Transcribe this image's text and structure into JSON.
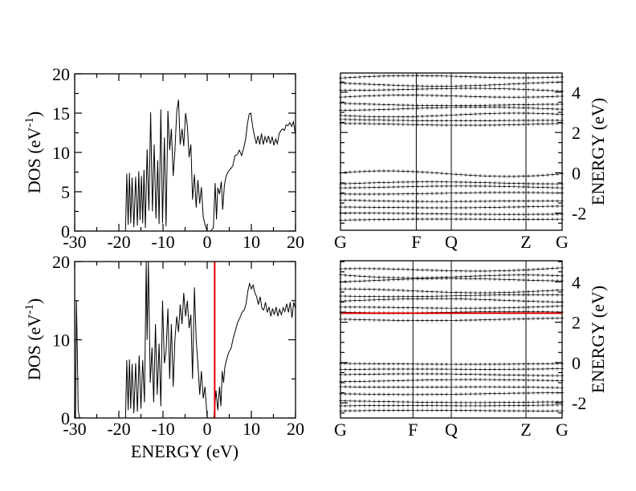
{
  "chart_data": [
    {
      "id": "dos_top",
      "type": "line",
      "xlabel": "ENERGY (eV)",
      "show_xlabel": false,
      "ylabel_main": "DOS (eV",
      "ylabel_sup": "-1",
      "ylabel_close": ")",
      "xlim": [
        -30,
        20
      ],
      "ylim": [
        0,
        20
      ],
      "xticks": [
        -30,
        -20,
        -10,
        0,
        10,
        20
      ],
      "xtick_labels": [
        "-30",
        "-20",
        "-10",
        "0",
        "10",
        "20"
      ],
      "yticks": [
        0,
        5,
        10,
        15,
        20
      ],
      "ytick_labels": [
        "0",
        "5",
        "10",
        "15",
        "20"
      ],
      "fermi_line": null,
      "series": [
        {
          "name": "DOS",
          "color": "#000000",
          "points": [
            [
              -18.5,
              0
            ],
            [
              -18.2,
              7.3
            ],
            [
              -17.9,
              0.8
            ],
            [
              -17.6,
              7.4
            ],
            [
              -17.3,
              1.0
            ],
            [
              -17.0,
              6.8
            ],
            [
              -16.6,
              0.5
            ],
            [
              -16.2,
              6.9
            ],
            [
              -15.8,
              0.7
            ],
            [
              -15.5,
              7.6
            ],
            [
              -15.2,
              1.4
            ],
            [
              -14.9,
              7.0
            ],
            [
              -14.6,
              1.0
            ],
            [
              -14.3,
              7.8
            ],
            [
              -14.0,
              0.4
            ],
            [
              -13.6,
              10.4
            ],
            [
              -13.2,
              2.6
            ],
            [
              -12.8,
              15.1
            ],
            [
              -12.4,
              2.5
            ],
            [
              -12.0,
              11.0
            ],
            [
              -11.6,
              1.6
            ],
            [
              -11.2,
              9.0
            ],
            [
              -10.9,
              0.9
            ],
            [
              -10.5,
              15.5
            ],
            [
              -10.1,
              1.0
            ],
            [
              -9.7,
              11.9
            ],
            [
              -9.3,
              0.6
            ],
            [
              -8.9,
              15.3
            ],
            [
              -8.5,
              10.3
            ],
            [
              -8.1,
              13.0
            ],
            [
              -7.7,
              7.0
            ],
            [
              -7.3,
              10.2
            ],
            [
              -6.9,
              15.2
            ],
            [
              -6.5,
              16.7
            ],
            [
              -6.1,
              11.0
            ],
            [
              -5.7,
              13.0
            ],
            [
              -5.3,
              10.8
            ],
            [
              -4.9,
              15.0
            ],
            [
              -4.5,
              13.4
            ],
            [
              -4.1,
              9.4
            ],
            [
              -3.7,
              11.0
            ],
            [
              -3.3,
              4.0
            ],
            [
              -2.9,
              7.2
            ],
            [
              -2.5,
              3.0
            ],
            [
              -2.1,
              6.5
            ],
            [
              -1.7,
              3.5
            ],
            [
              -1.3,
              5.6
            ],
            [
              -0.9,
              1.8
            ],
            [
              -0.5,
              0.8
            ],
            [
              0.0,
              0.0
            ],
            [
              0.8,
              0.0
            ],
            [
              1.4,
              0.4
            ],
            [
              1.8,
              6.1
            ],
            [
              2.1,
              1.5
            ],
            [
              2.4,
              5.5
            ],
            [
              2.8,
              4.7
            ],
            [
              3.2,
              6.3
            ],
            [
              3.5,
              2.7
            ],
            [
              3.9,
              5.8
            ],
            [
              4.3,
              7.0
            ],
            [
              4.8,
              7.6
            ],
            [
              5.3,
              7.9
            ],
            [
              5.8,
              8.3
            ],
            [
              6.3,
              9.6
            ],
            [
              6.8,
              9.7
            ],
            [
              7.3,
              10.3
            ],
            [
              7.8,
              9.6
            ],
            [
              8.3,
              10.6
            ],
            [
              8.7,
              11.7
            ],
            [
              9.1,
              13.6
            ],
            [
              9.5,
              14.9
            ],
            [
              9.9,
              15.0
            ],
            [
              10.3,
              13.3
            ],
            [
              10.7,
              12.1
            ],
            [
              11.1,
              11.1
            ],
            [
              11.5,
              12.1
            ],
            [
              11.9,
              11.0
            ],
            [
              12.3,
              12.4
            ],
            [
              12.7,
              11.0
            ],
            [
              13.1,
              12.0
            ],
            [
              13.5,
              11.3
            ],
            [
              13.9,
              12.1
            ],
            [
              14.3,
              11.1
            ],
            [
              14.7,
              12.0
            ],
            [
              15.1,
              10.9
            ],
            [
              15.5,
              11.7
            ],
            [
              15.9,
              11.1
            ],
            [
              16.3,
              12.4
            ],
            [
              16.7,
              12.8
            ],
            [
              17.1,
              13.0
            ],
            [
              17.5,
              12.8
            ],
            [
              17.9,
              13.5
            ],
            [
              18.3,
              13.4
            ],
            [
              18.7,
              13.8
            ],
            [
              19.1,
              13.3
            ],
            [
              19.5,
              13.9
            ],
            [
              20.0,
              12.3
            ]
          ]
        }
      ]
    },
    {
      "id": "dos_bottom",
      "type": "line",
      "xlabel": "ENERGY (eV)",
      "show_xlabel": true,
      "ylabel_main": "DOS (eV",
      "ylabel_sup": "-1",
      "ylabel_close": ")",
      "xlim": [
        -30,
        20
      ],
      "ylim": [
        0,
        20
      ],
      "xticks": [
        -30,
        -20,
        -10,
        0,
        10,
        20
      ],
      "xtick_labels": [
        "-30",
        "-20",
        "-10",
        "0",
        "10",
        "20"
      ],
      "yticks": [
        0,
        10,
        20
      ],
      "ytick_labels": [
        "0",
        "10",
        "20"
      ],
      "fermi_line": 1.7,
      "fermi_color": "#e00000",
      "series": [
        {
          "name": "DOS",
          "color": "#000000",
          "points": [
            [
              -29.8,
              0
            ],
            [
              -29.6,
              15.0
            ],
            [
              -29.4,
              8.5
            ],
            [
              -29.2,
              1.0
            ],
            [
              -28.9,
              0.0
            ],
            [
              -18.5,
              0
            ],
            [
              -18.2,
              7.4
            ],
            [
              -17.9,
              1.0
            ],
            [
              -17.6,
              7.5
            ],
            [
              -17.3,
              1.2
            ],
            [
              -17.0,
              6.9
            ],
            [
              -16.6,
              0.6
            ],
            [
              -16.2,
              7.0
            ],
            [
              -15.8,
              0.8
            ],
            [
              -15.4,
              8.0
            ],
            [
              -15.0,
              1.2
            ],
            [
              -14.6,
              7.4
            ],
            [
              -14.2,
              2.0
            ],
            [
              -13.8,
              20.0
            ],
            [
              -13.6,
              10.0
            ],
            [
              -13.3,
              20.0
            ],
            [
              -12.9,
              4.5
            ],
            [
              -12.5,
              9.0
            ],
            [
              -12.1,
              2.0
            ],
            [
              -11.7,
              12.0
            ],
            [
              -11.3,
              3.0
            ],
            [
              -10.9,
              9.5
            ],
            [
              -10.5,
              1.5
            ],
            [
              -10.1,
              15.0
            ],
            [
              -9.7,
              7.0
            ],
            [
              -9.3,
              8.5
            ],
            [
              -8.9,
              14.0
            ],
            [
              -8.5,
              5.0
            ],
            [
              -8.1,
              12.0
            ],
            [
              -7.7,
              4.0
            ],
            [
              -7.3,
              10.0
            ],
            [
              -6.9,
              13.0
            ],
            [
              -6.5,
              11.0
            ],
            [
              -6.1,
              14.5
            ],
            [
              -5.7,
              12.0
            ],
            [
              -5.3,
              16.0
            ],
            [
              -4.9,
              13.0
            ],
            [
              -4.5,
              15.0
            ],
            [
              -4.1,
              11.5
            ],
            [
              -3.7,
              13.2
            ],
            [
              -3.3,
              5.0
            ],
            [
              -2.9,
              16.7
            ],
            [
              -2.5,
              10.0
            ],
            [
              -2.1,
              7.0
            ],
            [
              -1.7,
              3.0
            ],
            [
              -1.3,
              6.0
            ],
            [
              -0.9,
              2.5
            ],
            [
              -0.5,
              4.0
            ],
            [
              0.0,
              0.0
            ],
            [
              1.5,
              0.0
            ],
            [
              2.0,
              3.5
            ],
            [
              2.4,
              1.0
            ],
            [
              2.8,
              4.0
            ],
            [
              3.1,
              1.5
            ],
            [
              3.4,
              6.0
            ],
            [
              3.7,
              4.5
            ],
            [
              4.0,
              6.5
            ],
            [
              4.4,
              7.5
            ],
            [
              4.9,
              8.4
            ],
            [
              5.4,
              8.9
            ],
            [
              5.9,
              10.2
            ],
            [
              6.4,
              11.2
            ],
            [
              6.9,
              12.2
            ],
            [
              7.4,
              12.8
            ],
            [
              7.9,
              13.5
            ],
            [
              8.4,
              13.8
            ],
            [
              8.8,
              14.6
            ],
            [
              9.2,
              16.2
            ],
            [
              9.6,
              17.2
            ],
            [
              10.0,
              16.5
            ],
            [
              10.4,
              17.0
            ],
            [
              10.8,
              16.0
            ],
            [
              11.2,
              15.5
            ],
            [
              11.6,
              14.5
            ],
            [
              12.0,
              15.5
            ],
            [
              12.4,
              14.0
            ],
            [
              12.8,
              13.8
            ],
            [
              13.2,
              14.8
            ],
            [
              13.6,
              13.5
            ],
            [
              14.0,
              14.2
            ],
            [
              14.4,
              13.0
            ],
            [
              14.8,
              14.0
            ],
            [
              15.2,
              13.2
            ],
            [
              15.6,
              14.2
            ],
            [
              16.0,
              13.0
            ],
            [
              16.4,
              13.9
            ],
            [
              16.8,
              13.2
            ],
            [
              17.2,
              14.1
            ],
            [
              17.6,
              13.6
            ],
            [
              18.0,
              14.6
            ],
            [
              18.4,
              13.5
            ],
            [
              18.8,
              14.8
            ],
            [
              19.2,
              12.8
            ],
            [
              19.6,
              14.8
            ],
            [
              20.0,
              14.0
            ]
          ]
        }
      ]
    },
    {
      "id": "bands_top",
      "type": "line",
      "ylabel": "ENERGY (eV)",
      "ylim": [
        -2.85,
        4.95
      ],
      "yticks": [
        -2,
        0,
        2,
        4
      ],
      "ytick_labels": [
        "-2",
        "0",
        "2",
        "4"
      ],
      "kpoint_labels": [
        "G",
        "F",
        "Q",
        "Z",
        "G"
      ],
      "kpoint_positions": [
        0.0,
        0.342,
        0.5,
        0.837,
        1.0
      ],
      "bands": [
        {
          "start": -2.35,
          "end": -2.3,
          "amp": 0.05
        },
        {
          "start": -2.0,
          "end": -2.05,
          "amp": 0.05
        },
        {
          "start": -1.7,
          "end": -1.65,
          "amp": 0.06
        },
        {
          "start": -1.35,
          "end": -1.4,
          "amp": 0.07
        },
        {
          "start": -1.05,
          "end": -1.0,
          "amp": 0.08
        },
        {
          "start": -0.75,
          "end": -0.75,
          "amp": 0.1
        },
        {
          "start": -0.55,
          "end": -0.55,
          "amp": 0.12
        },
        {
          "start": 0.0,
          "end": -0.05,
          "amp": 0.38
        },
        {
          "start": 2.45,
          "end": 2.45,
          "amp": 0.1
        },
        {
          "start": 2.65,
          "end": 2.6,
          "amp": 0.05
        },
        {
          "start": 2.85,
          "end": 2.9,
          "amp": 0.25
        },
        {
          "start": 3.1,
          "end": 3.15,
          "amp": 0.15
        },
        {
          "start": 3.45,
          "end": 3.4,
          "amp": -0.1
        },
        {
          "start": 3.75,
          "end": 3.8,
          "amp": 0.2
        },
        {
          "start": 4.1,
          "end": 4.05,
          "amp": -0.15
        },
        {
          "start": 4.45,
          "end": 4.5,
          "amp": 0.18
        },
        {
          "start": 4.7,
          "end": 4.75,
          "amp": -0.2
        }
      ],
      "fermi_level": null
    },
    {
      "id": "bands_bottom",
      "type": "line",
      "ylabel": "ENERGY (eV)",
      "ylim": [
        -2.75,
        5.05
      ],
      "yticks": [
        -2,
        0,
        2,
        4
      ],
      "ytick_labels": [
        "-2",
        "0",
        "2",
        "4"
      ],
      "kpoint_labels": [
        "G",
        "F",
        "Q",
        "Z",
        "G"
      ],
      "kpoint_positions": [
        0.0,
        0.327,
        0.5,
        0.837,
        1.0
      ],
      "bands": [
        {
          "start": -2.4,
          "end": -2.4,
          "amp": 0.05
        },
        {
          "start": -2.15,
          "end": -2.1,
          "amp": 0.05
        },
        {
          "start": -1.9,
          "end": -1.95,
          "amp": 0.06
        },
        {
          "start": -1.55,
          "end": -1.5,
          "amp": 0.07
        },
        {
          "start": -1.2,
          "end": -1.25,
          "amp": 0.06
        },
        {
          "start": -0.95,
          "end": -0.9,
          "amp": 0.08
        },
        {
          "start": -0.6,
          "end": -0.65,
          "amp": 0.07
        },
        {
          "start": -0.35,
          "end": -0.3,
          "amp": 0.06
        },
        {
          "start": -0.05,
          "end": -0.05,
          "amp": 0.04
        },
        {
          "start": 2.15,
          "end": 2.2,
          "amp": 0.1
        },
        {
          "start": 2.5,
          "end": 2.5,
          "amp": 0.1
        },
        {
          "start": 2.75,
          "end": 2.8,
          "amp": -0.1
        },
        {
          "start": 3.05,
          "end": 3.0,
          "amp": 0.15
        },
        {
          "start": 3.3,
          "end": 3.35,
          "amp": -0.1
        },
        {
          "start": 3.65,
          "end": 3.6,
          "amp": 0.2
        },
        {
          "start": 4.0,
          "end": 4.05,
          "amp": -0.15
        },
        {
          "start": 4.35,
          "end": 4.3,
          "amp": 0.25
        },
        {
          "start": 4.65,
          "end": 4.7,
          "amp": -0.2
        }
      ],
      "fermi_level": 2.45,
      "fermi_color": "#e00000"
    }
  ]
}
